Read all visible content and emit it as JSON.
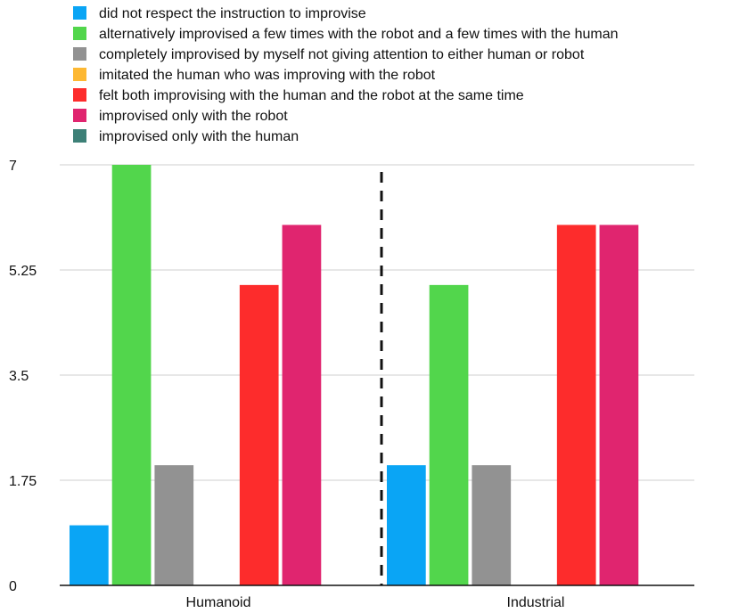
{
  "chart_data": {
    "type": "bar",
    "categories": [
      "Humanoid",
      "Industrial"
    ],
    "series": [
      {
        "name": "did not respect the instruction to improvise",
        "color": "#0aa5f5",
        "values": [
          1,
          2
        ]
      },
      {
        "name": "alternatively improvised a few times with the robot and a few times with the human",
        "color": "#52d64c",
        "values": [
          7,
          5
        ]
      },
      {
        "name": "completely improvised by myself not giving attention to either human or robot",
        "color": "#929292",
        "values": [
          2,
          2
        ]
      },
      {
        "name": "imitated the human who was improving with the robot",
        "color": "#fdb833",
        "values": [
          0,
          0
        ]
      },
      {
        "name": "felt both improvising with the human and the robot at the same time",
        "color": "#fd2c2c",
        "values": [
          5,
          6
        ]
      },
      {
        "name": "improvised only with the robot",
        "color": "#e0256f",
        "values": [
          6,
          6
        ]
      },
      {
        "name": "improvised only with the human",
        "color": "#3d8077",
        "values": [
          0,
          0
        ]
      }
    ],
    "y_ticks": [
      0,
      1.75,
      3.5,
      5.25,
      7
    ],
    "y_tick_labels": [
      "0",
      "1.75",
      "3.5",
      "5.25",
      "7"
    ],
    "ylim": [
      0,
      7
    ],
    "grid": true,
    "legend_position": "top-left",
    "divider_between_categories": "dashed"
  }
}
